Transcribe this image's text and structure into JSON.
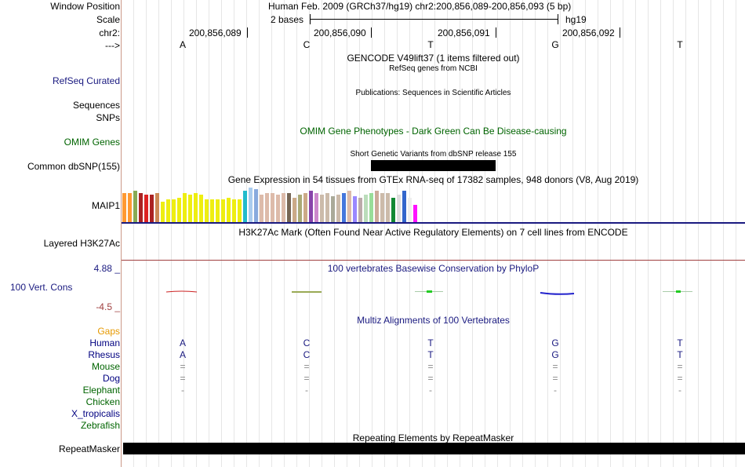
{
  "header": {
    "window_position_label": "Window Position",
    "window_position_value": "Human Feb. 2009 (GRCh37/hg19)   chr2:200,856,089-200,856,093 (5 bp)",
    "scale_label": "Scale",
    "scale_value": "2 bases",
    "scale_assembly": "hg19",
    "chrom_label": "chr2:",
    "arrow_label": "--->",
    "coords": [
      "200,856,089",
      "200,856,090",
      "200,856,091",
      "200,856,092"
    ],
    "bases": [
      "A",
      "C",
      "T",
      "G",
      "T"
    ]
  },
  "tracks": {
    "gencode_title": "GENCODE V49lift37 (1 items filtered out)",
    "refseq_title": "RefSeq genes from NCBI",
    "refseq_label": "RefSeq Curated",
    "publications_title": "Publications: Sequences in Scientific Articles",
    "sequences_label": "Sequences",
    "snps_label": "SNPs",
    "omim_title": "OMIM Gene Phenotypes - Dark Green Can Be Disease-causing",
    "omim_label": "OMIM Genes",
    "dbsnp_title": "Short Genetic Variants from dbSNP release 155",
    "dbsnp_label": "Common dbSNP(155)",
    "gtex_title": "Gene Expression in 54 tissues from GTEx RNA-seq of 17382 samples, 948 donors (V8, Aug 2019)",
    "gtex_label": "MAIP1",
    "h3k27ac_title": "H3K27Ac Mark (Often Found Near Active Regulatory Elements) on 7 cell lines from ENCODE",
    "h3k27ac_label": "Layered H3K27Ac",
    "phylop_title": "100 vertebrates Basewise Conservation by PhyloP",
    "phylop_label": "100 Vert. Cons",
    "phylop_max": "4.88 _",
    "phylop_min": "-4.5 _",
    "gaps_label": "Gaps",
    "multiz_title": "Multiz Alignments of 100 Vertebrates",
    "repeat_title": "Repeating Elements by RepeatMasker",
    "repeat_label": "RepeatMasker"
  },
  "alignment": {
    "species": [
      "Human",
      "Rhesus",
      "Mouse",
      "Dog",
      "Elephant",
      "Chicken",
      "X_tropicalis",
      "Zebrafish"
    ],
    "species_colors": [
      "#000080",
      "#000080",
      "#006400",
      "#000080",
      "#006400",
      "#006400",
      "#000080",
      "#006400"
    ],
    "rows": {
      "Human": [
        "A",
        "C",
        "T",
        "G",
        "T"
      ],
      "Rhesus": [
        "A",
        "C",
        "T",
        "G",
        "T"
      ],
      "Mouse": [
        "=",
        "=",
        "=",
        "=",
        "="
      ],
      "Dog": [
        "=",
        "=",
        "=",
        "=",
        "="
      ],
      "Elephant": [
        "-",
        "-",
        "-",
        "-",
        "-"
      ]
    }
  },
  "gtex_values": [
    0.85,
    0.85,
    0.9,
    0.85,
    0.8,
    0.8,
    0.85,
    0.6,
    0.65,
    0.65,
    0.7,
    0.85,
    0.8,
    0.85,
    0.8,
    0.65,
    0.65,
    0.65,
    0.65,
    0.7,
    0.65,
    0.65,
    0.9,
    1.0,
    0.95,
    0.8,
    0.85,
    0.85,
    0.8,
    0.85,
    0.85,
    0.7,
    0.8,
    0.85,
    0.9,
    0.85,
    0.8,
    0.85,
    0.75,
    0.8,
    0.85,
    0.9,
    0.75,
    0.7,
    0.8,
    0.85,
    0.9,
    0.85,
    0.85,
    0.7,
    0.8,
    0.9,
    0.7,
    0.5
  ],
  "gtex_colors": [
    "#ff9933",
    "#ff9933",
    "#88aa55",
    "#aa2222",
    "#dd2222",
    "#aa2222",
    "#cc8855",
    "#eeee11",
    "#eeee11",
    "#eeee11",
    "#eeee11",
    "#eeee11",
    "#eeee11",
    "#eeee11",
    "#eeee11",
    "#eeee11",
    "#eeee11",
    "#eeee11",
    "#eeee11",
    "#eeee11",
    "#eeee11",
    "#eeee11",
    "#22bbcc",
    "#aaccee",
    "#88aadd",
    "#ddbbaa",
    "#ddbbaa",
    "#ddbbaa",
    "#ddbbaa",
    "#ddbbaa",
    "#776655",
    "#ccaa88",
    "#aaaa77",
    "#ccaa88",
    "#8844aa",
    "#cc88cc",
    "#ccbbaa",
    "#ccbbaa",
    "#aaaa99",
    "#ccbbaa",
    "#4477dd",
    "#ddbbaa",
    "#9988ff",
    "#bbaaaa",
    "#bbddbb",
    "#99dd99",
    "#ccaa99",
    "#ccbbaa",
    "#ccbbaa",
    "#118833",
    "#dddddd",
    "#3366cc",
    "#eeeeee",
    "#ff11ff"
  ]
}
